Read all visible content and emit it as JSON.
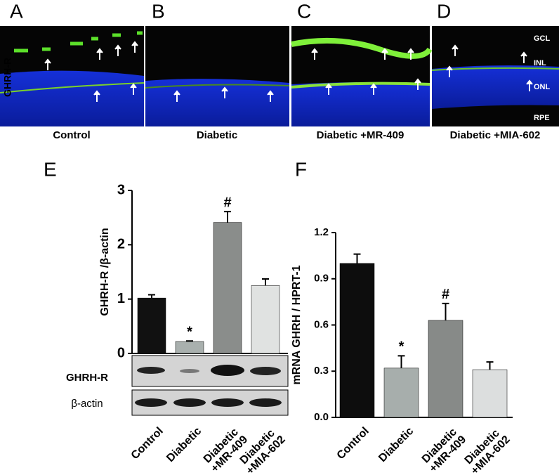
{
  "panels": {
    "labels": [
      "A",
      "B",
      "C",
      "D"
    ],
    "captions": [
      "Control",
      "Diabetic",
      "Diabetic +MR-409",
      "Diabetic +MIA-602"
    ],
    "row_label": "GHRH-R",
    "layer_labels": [
      "GCL",
      "INL",
      "ONL",
      "RPE"
    ]
  },
  "chart_data": [
    {
      "type": "bar",
      "panel": "E",
      "ylabel": "GHRH-R /β-actin",
      "categories": [
        "Control",
        "Diabetic",
        "Diabetic\n+MR-409",
        "Diabetic\n+MIA-602"
      ],
      "values": [
        1.02,
        0.22,
        2.41,
        1.25
      ],
      "errors": [
        0.06,
        0.01,
        0.2,
        0.12
      ],
      "markers": [
        null,
        "*",
        "#",
        null
      ],
      "colors": [
        "#111111",
        "#a9b0ae",
        "#8a8d8b",
        "#e0e2e1"
      ],
      "ylim": [
        0,
        3
      ],
      "yticks": [
        0,
        1,
        2,
        3
      ],
      "blot_labels": [
        "GHRH-R",
        "β-actin"
      ]
    },
    {
      "type": "bar",
      "panel": "F",
      "ylabel": "mRNA GHRH / HPRT-1",
      "categories": [
        "Control",
        "Diabetic",
        "Diabetic\n+MR-409",
        "Diabetic\n+MIA-602"
      ],
      "values": [
        1.0,
        0.32,
        0.63,
        0.31
      ],
      "errors": [
        0.06,
        0.08,
        0.11,
        0.05
      ],
      "markers": [
        null,
        "*",
        "#",
        null
      ],
      "colors": [
        "#0d0d0d",
        "#a7aeac",
        "#878a88",
        "#dcdede"
      ],
      "ylim": [
        0,
        1.2
      ],
      "yticks": [
        {
          "value": 0,
          "label": "0.0"
        },
        0.3,
        0.6,
        0.9,
        1.2
      ]
    }
  ]
}
